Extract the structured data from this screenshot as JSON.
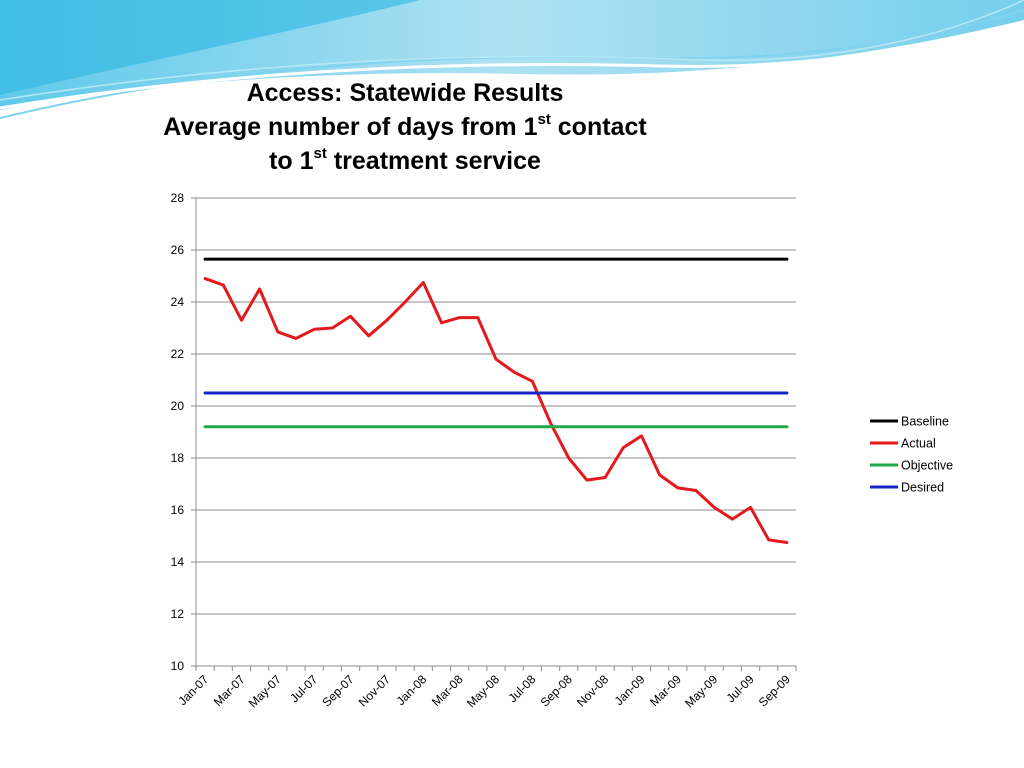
{
  "slide": {
    "title_line1": "Access: Statewide Results",
    "title_line2_a": "Average number of days from 1",
    "title_line2_sup": "st",
    "title_line2_b": " contact",
    "title_line3_a": "to 1",
    "title_line3_sup": "st",
    "title_line3_b": " treatment service"
  },
  "chart_data": {
    "type": "line",
    "title": "Access: Statewide Results Average number of days from 1st contact to 1st treatment service",
    "xlabel": "",
    "ylabel": "",
    "ylim": [
      10,
      28
    ],
    "yticks": [
      10,
      12,
      14,
      16,
      18,
      20,
      22,
      24,
      26,
      28
    ],
    "grid": true,
    "legend_position": "right",
    "categories": [
      "Jan-07",
      "Feb-07",
      "Mar-07",
      "Apr-07",
      "May-07",
      "Jun-07",
      "Jul-07",
      "Aug-07",
      "Sep-07",
      "Oct-07",
      "Nov-07",
      "Dec-07",
      "Jan-08",
      "Feb-08",
      "Mar-08",
      "Apr-08",
      "May-08",
      "Jun-08",
      "Jul-08",
      "Aug-08",
      "Sep-08",
      "Oct-08",
      "Nov-08",
      "Dec-08",
      "Jan-09",
      "Feb-09",
      "Mar-09",
      "Apr-09",
      "May-09",
      "Jun-09",
      "Jul-09",
      "Aug-09",
      "Sep-09"
    ],
    "tick_labels": [
      "Jan-07",
      "Mar-07",
      "May-07",
      "Jul-07",
      "Sep-07",
      "Nov-07",
      "Jan-08",
      "Mar-08",
      "May-08",
      "Jul-08",
      "Sep-08",
      "Nov-08",
      "Jan-09",
      "Mar-09",
      "May-09",
      "Jul-09",
      "Sep-09"
    ],
    "series": [
      {
        "name": "Baseline",
        "color": "#000000",
        "values": [
          25.65,
          25.65,
          25.65,
          25.65,
          25.65,
          25.65,
          25.65,
          25.65,
          25.65,
          25.65,
          25.65,
          25.65,
          25.65,
          25.65,
          25.65,
          25.65,
          25.65,
          25.65,
          25.65,
          25.65,
          25.65,
          25.65,
          25.65,
          25.65,
          25.65,
          25.65,
          25.65,
          25.65,
          25.65,
          25.65,
          25.65,
          25.65,
          25.65
        ]
      },
      {
        "name": "Actual",
        "color": "#e3191c",
        "values": [
          24.9,
          24.65,
          23.3,
          24.5,
          22.85,
          22.6,
          22.95,
          23.0,
          23.45,
          22.7,
          23.3,
          24.0,
          24.75,
          23.2,
          23.4,
          23.4,
          21.8,
          21.3,
          20.95,
          19.35,
          18.0,
          17.15,
          17.25,
          18.4,
          18.85,
          17.35,
          16.85,
          16.75,
          16.1,
          15.65,
          16.1,
          14.85,
          14.75
        ]
      },
      {
        "name": "Objective",
        "color": "#1faa4c",
        "values": [
          19.2,
          19.2,
          19.2,
          19.2,
          19.2,
          19.2,
          19.2,
          19.2,
          19.2,
          19.2,
          19.2,
          19.2,
          19.2,
          19.2,
          19.2,
          19.2,
          19.2,
          19.2,
          19.2,
          19.2,
          19.2,
          19.2,
          19.2,
          19.2,
          19.2,
          19.2,
          19.2,
          19.2,
          19.2,
          19.2,
          19.2,
          19.2,
          19.2
        ]
      },
      {
        "name": "Desired",
        "color": "#1624c8",
        "values": [
          20.5,
          20.5,
          20.5,
          20.5,
          20.5,
          20.5,
          20.5,
          20.5,
          20.5,
          20.5,
          20.5,
          20.5,
          20.5,
          20.5,
          20.5,
          20.5,
          20.5,
          20.5,
          20.5,
          20.5,
          20.5,
          20.5,
          20.5,
          20.5,
          20.5,
          20.5,
          20.5,
          20.5,
          20.5,
          20.5,
          20.5,
          20.5,
          20.5
        ]
      }
    ]
  }
}
